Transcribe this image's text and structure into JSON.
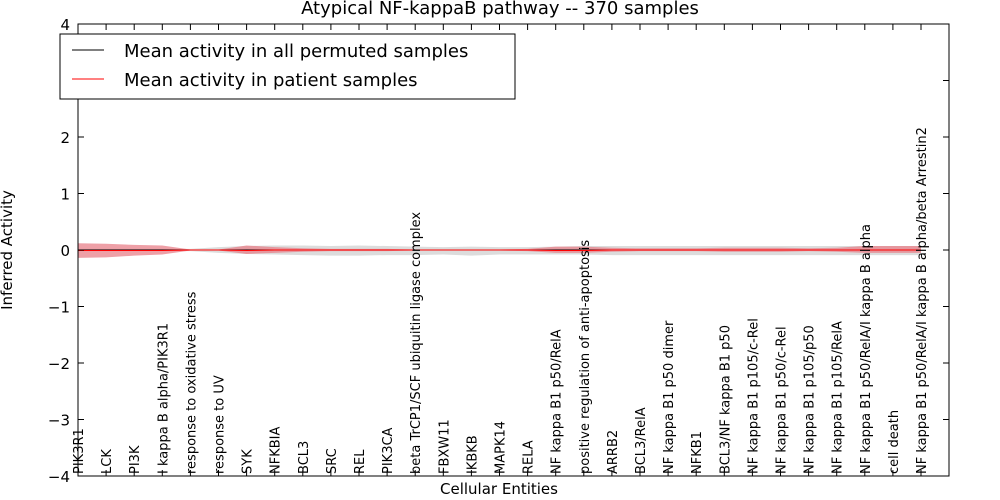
{
  "chart_data": {
    "type": "area",
    "title": "Atypical NF-kappaB pathway -- 370 samples",
    "xlabel": "Cellular Entities",
    "ylabel": "Inferred Activity",
    "ylim": [
      -4,
      4
    ],
    "yticks": [
      "4",
      "3",
      "2",
      "1",
      "0",
      "−1",
      "−2",
      "−3",
      "−4"
    ],
    "ytick_values": [
      4,
      3,
      2,
      1,
      0,
      -1,
      -2,
      -3,
      -4
    ],
    "categories": [
      "PIK3R1",
      "LCK",
      "PI3K",
      "I kappa B alpha/PIK3R1",
      "response to oxidative stress",
      "response to UV",
      "SYK",
      "NFKBIA",
      "BCL3",
      "SRC",
      "REL",
      "PIK3CA",
      "beta TrCP1/SCF ubiquitin ligase complex",
      "FBXW11",
      "IKBKB",
      "MAPK14",
      "RELA",
      "NF kappa B1 p50/RelA",
      "positive regulation of anti-apoptosis",
      "ARRB2",
      "BCL3/RelA",
      "NF kappa B1 p50 dimer",
      "NFKB1",
      "BCL3/NF kappa B1 p50",
      "NF kappa B1 p105/c-Rel",
      "NF kappa B1 p50/c-Rel",
      "NF kappa B1 p105/p50",
      "NF kappa B1 p105/RelA",
      "NF kappa B1 p50/RelA/I kappa B alpha",
      "cell death",
      "NF kappa B1 p50/RelA/I kappa B alpha/beta Arrestin2"
    ],
    "legend": {
      "placement": "top-left",
      "entries": [
        "Mean activity in all permuted samples",
        "Mean activity in patient samples"
      ]
    },
    "series": [
      {
        "name": "Mean activity in all permuted samples",
        "color": "#000000",
        "band_color": "#bfbfbf",
        "values": [
          0,
          0,
          0,
          0,
          0,
          0,
          0,
          0,
          0,
          0,
          0,
          0,
          0,
          0,
          0,
          0,
          0,
          0,
          0,
          0,
          0,
          0,
          0,
          0,
          0,
          0,
          0,
          0,
          0,
          0,
          0
        ],
        "lower": [
          -0.02,
          -0.02,
          -0.02,
          -0.02,
          -0.02,
          -0.05,
          -0.07,
          -0.08,
          -0.09,
          -0.1,
          -0.1,
          -0.09,
          -0.09,
          -0.08,
          -0.1,
          -0.08,
          -0.08,
          -0.08,
          -0.08,
          -0.09,
          -0.09,
          -0.09,
          -0.09,
          -0.09,
          -0.09,
          -0.09,
          -0.09,
          -0.09,
          -0.09,
          -0.09,
          -0.09
        ],
        "upper": [
          0.02,
          0.02,
          0.02,
          0.02,
          0.02,
          0.05,
          0.07,
          0.08,
          0.08,
          0.07,
          0.08,
          0.07,
          0.06,
          0.05,
          0.06,
          0.05,
          0.05,
          0.06,
          0.07,
          0.07,
          0.07,
          0.07,
          0.07,
          0.07,
          0.07,
          0.07,
          0.07,
          0.07,
          0.07,
          0.07,
          0.07
        ]
      },
      {
        "name": "Mean activity in patient samples",
        "color": "#ff0000",
        "band_color": "#e8808a",
        "values": [
          -0.01,
          -0.01,
          -0.01,
          -0.01,
          0,
          0,
          -0.01,
          0,
          0,
          0,
          0,
          0,
          0,
          0,
          0,
          0,
          0,
          -0.01,
          -0.01,
          0,
          0,
          0,
          0,
          0,
          0,
          0,
          0,
          0,
          0,
          0,
          0
        ],
        "lower": [
          -0.14,
          -0.13,
          -0.1,
          -0.08,
          -0.01,
          -0.01,
          -0.07,
          -0.05,
          -0.03,
          -0.02,
          -0.02,
          -0.02,
          -0.01,
          -0.01,
          -0.01,
          -0.01,
          -0.02,
          -0.05,
          -0.05,
          -0.03,
          -0.02,
          -0.02,
          -0.02,
          -0.03,
          -0.03,
          -0.03,
          -0.02,
          -0.03,
          -0.05,
          -0.05,
          -0.05
        ],
        "upper": [
          0.12,
          0.11,
          0.09,
          0.08,
          0.01,
          0.01,
          0.08,
          0.05,
          0.03,
          0.02,
          0.02,
          0.02,
          0.01,
          0.01,
          0.01,
          0.01,
          0.02,
          0.06,
          0.06,
          0.04,
          0.03,
          0.03,
          0.03,
          0.04,
          0.04,
          0.04,
          0.03,
          0.04,
          0.07,
          0.07,
          0.07
        ]
      }
    ]
  }
}
